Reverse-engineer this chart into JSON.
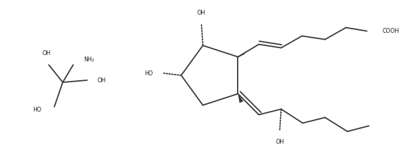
{
  "bg_color": "#ffffff",
  "line_color": "#3a3a3a",
  "text_color": "#1a1a1a",
  "lw": 1.3,
  "figsize": [
    5.84,
    2.38
  ],
  "dpi": 100,
  "xlim": [
    0,
    58.4
  ],
  "ylim": [
    0,
    23.8
  ],
  "font_size": 5.8
}
